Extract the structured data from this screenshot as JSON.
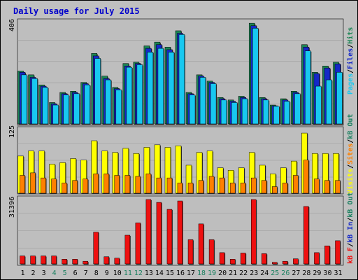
{
  "chart_data": [
    {
      "type": "bar",
      "title": "Daily usage for July 2015",
      "categories": [
        "1",
        "2",
        "3",
        "4",
        "5",
        "6",
        "7",
        "8",
        "9",
        "10",
        "11",
        "12",
        "13",
        "14",
        "15",
        "16",
        "17",
        "18",
        "19",
        "20",
        "21",
        "22",
        "23",
        "24",
        "25",
        "26",
        "27",
        "28",
        "29",
        "30",
        "31"
      ],
      "weekend_days": [
        "4",
        "5",
        "11",
        "12",
        "18",
        "19",
        "25",
        "26"
      ],
      "ymax_label": "406",
      "ylim": [
        0,
        406
      ],
      "legend": [
        "Pages",
        "Files",
        "Hits"
      ],
      "series": [
        {
          "name": "Hits",
          "values": [
            210,
            195,
            155,
            85,
            125,
            130,
            165,
            280,
            190,
            145,
            240,
            245,
            310,
            325,
            305,
            370,
            125,
            195,
            170,
            105,
            95,
            110,
            400,
            105,
            75,
            100,
            130,
            315,
            205,
            230,
            245
          ]
        },
        {
          "name": "Files",
          "values": [
            205,
            185,
            150,
            80,
            120,
            125,
            160,
            270,
            180,
            140,
            230,
            240,
            300,
            315,
            295,
            360,
            120,
            190,
            165,
            100,
            90,
            105,
            390,
            100,
            72,
            95,
            125,
            305,
            200,
            222,
            238
          ]
        },
        {
          "name": "Pages",
          "values": [
            195,
            180,
            145,
            75,
            115,
            120,
            155,
            260,
            175,
            135,
            225,
            235,
            285,
            300,
            285,
            355,
            115,
            185,
            160,
            95,
            85,
            100,
            380,
            95,
            70,
            90,
            120,
            290,
            150,
            175,
            205
          ]
        }
      ]
    },
    {
      "type": "bar",
      "ymax_label": "125",
      "ylim": [
        0,
        125
      ],
      "legend": [
        "Visits",
        "Sites",
        "kB Out"
      ],
      "series": [
        {
          "name": "Visits",
          "values": [
            73,
            83,
            83,
            57,
            60,
            68,
            65,
            103,
            83,
            80,
            88,
            78,
            90,
            95,
            90,
            93,
            55,
            80,
            83,
            50,
            45,
            50,
            80,
            55,
            38,
            50,
            63,
            118,
            78,
            78,
            78
          ]
        },
        {
          "name": "Sites",
          "values": [
            35,
            40,
            30,
            28,
            20,
            25,
            28,
            38,
            38,
            35,
            35,
            33,
            38,
            30,
            30,
            20,
            20,
            25,
            33,
            30,
            20,
            20,
            30,
            25,
            13,
            20,
            35,
            65,
            28,
            25,
            25
          ]
        }
      ]
    },
    {
      "type": "bar",
      "ymax_label": "31396",
      "ylim": [
        0,
        31396
      ],
      "legend": [
        "kB F",
        "kB In",
        "kB Out"
      ],
      "series": [
        {
          "name": "kB F",
          "values": [
            3900,
            3900,
            3900,
            3900,
            2300,
            2300,
            1300,
            15500,
            3500,
            2800,
            14000,
            20000,
            31396,
            30000,
            26600,
            30700,
            11800,
            19500,
            11800,
            5500,
            2300,
            5300,
            31396,
            5000,
            800,
            1300,
            2500,
            28000,
            5500,
            8800,
            11300
          ]
        }
      ]
    }
  ],
  "colors": {
    "background": "#C0C0C0",
    "plot": "#BEBEBE",
    "title": "#0000CC",
    "axis_text": "#000000",
    "weekend_text": "#1A8060",
    "hits": "#1C8454",
    "files": "#1428C8",
    "pages": "#18C8F0",
    "visits": "#FFFF00",
    "sites": "#FF8000",
    "kbin_label": "#1A8060",
    "kbf_bars": "#EE1010",
    "kbf_label": "#EE1010",
    "kbout_label": "#1A8060"
  }
}
